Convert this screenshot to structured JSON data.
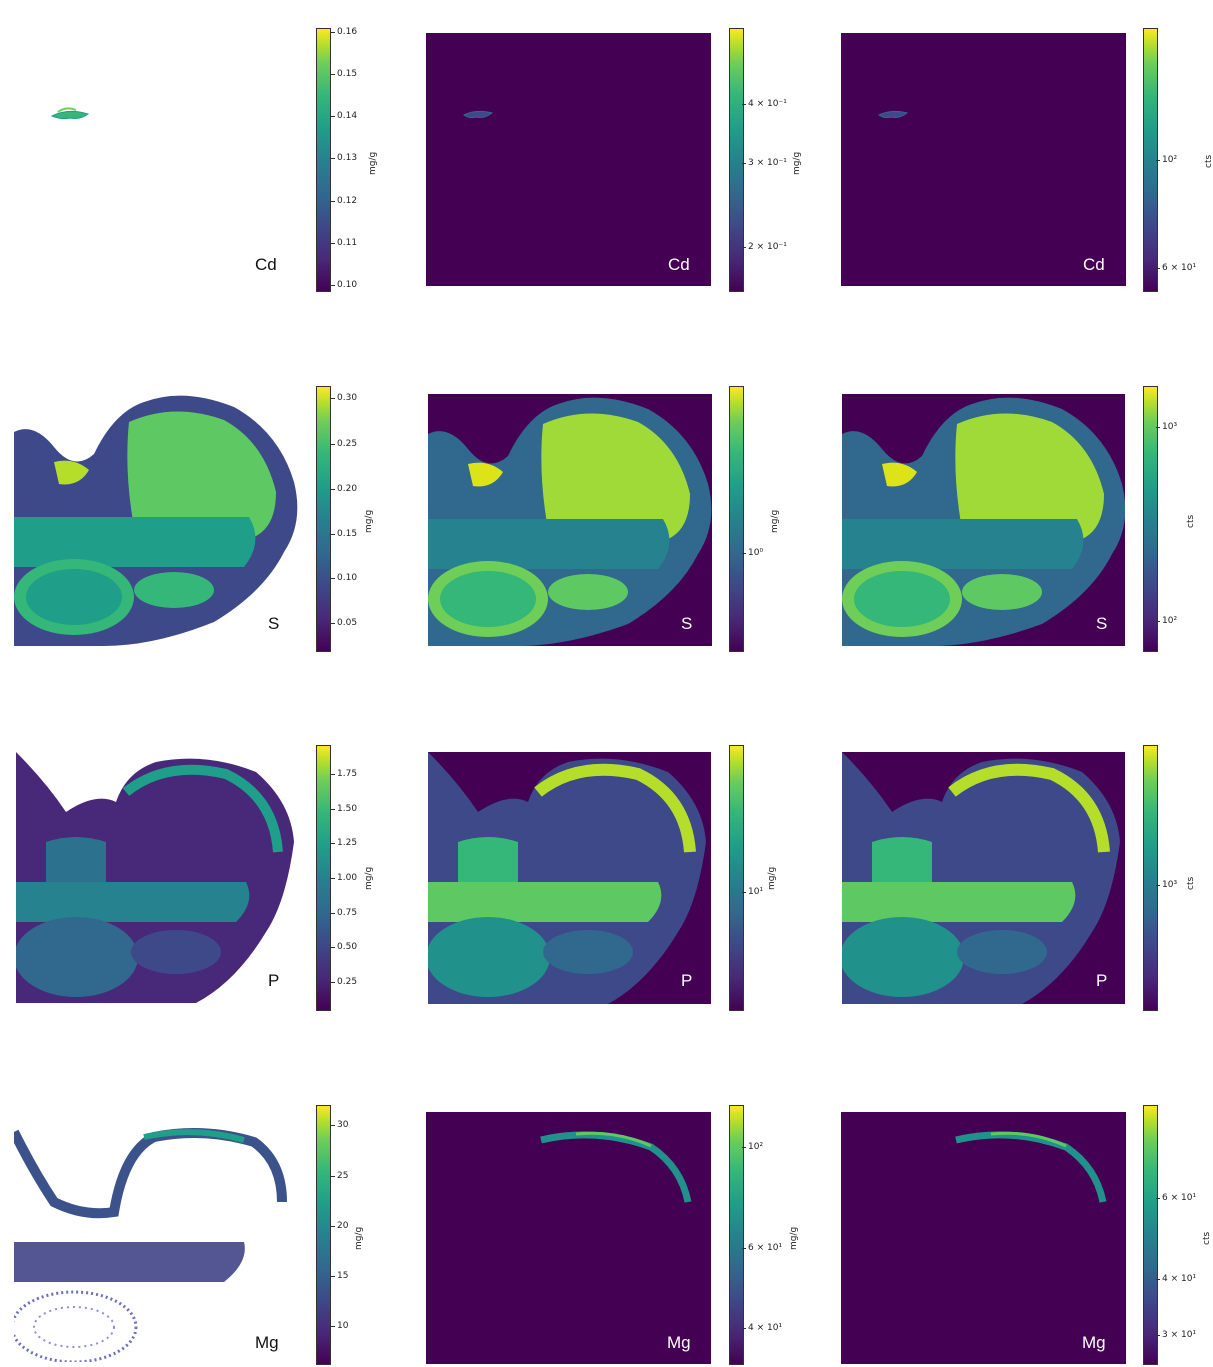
{
  "rows": [
    {
      "element": "Cd",
      "panels": [
        {
          "unit": "mg/g",
          "ticks": [
            "0.16",
            "0.15",
            "0.14",
            "0.13",
            "0.12",
            "0.11",
            "0.10"
          ]
        },
        {
          "unit": "mg/g",
          "ticks": [
            "4 × 10⁻¹",
            "3 × 10⁻¹",
            "2 × 10⁻¹"
          ]
        },
        {
          "unit": "cts",
          "ticks": [
            "10²",
            "6 × 10¹"
          ]
        }
      ]
    },
    {
      "element": "S",
      "panels": [
        {
          "unit": "mg/g",
          "ticks": [
            "0.30",
            "0.25",
            "0.20",
            "0.15",
            "0.10",
            "0.05"
          ]
        },
        {
          "unit": "mg/g",
          "ticks": [
            "10⁰"
          ]
        },
        {
          "unit": "cts",
          "ticks": [
            "10³",
            "10²"
          ]
        }
      ]
    },
    {
      "element": "P",
      "panels": [
        {
          "unit": "mg/g",
          "ticks": [
            "1.75",
            "1.50",
            "1.25",
            "1.00",
            "0.75",
            "0.50",
            "0.25"
          ]
        },
        {
          "unit": "mg/g",
          "ticks": [
            "10¹"
          ]
        },
        {
          "unit": "cts",
          "ticks": [
            "10³"
          ]
        }
      ]
    },
    {
      "element": "Mg",
      "panels": [
        {
          "unit": "mg/g",
          "ticks": [
            "30",
            "25",
            "20",
            "15",
            "10"
          ]
        },
        {
          "unit": "mg/g",
          "ticks": [
            "10²",
            "6 × 10¹",
            "4 × 10¹"
          ]
        },
        {
          "unit": "cts",
          "ticks": [
            "6 × 10¹",
            "4 × 10¹",
            "3 × 10¹"
          ]
        }
      ]
    }
  ],
  "colormap": {
    "low": "#440154",
    "mid": "#21918c",
    "high": "#fde725"
  }
}
